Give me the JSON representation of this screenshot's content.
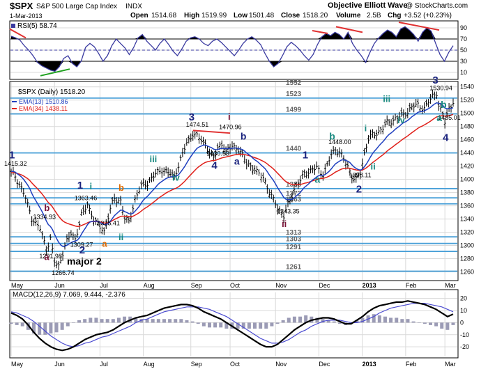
{
  "header": {
    "symbol": "$SPX",
    "name": "S&P 500 Large Cap Index",
    "exchange": "INDX",
    "brand": "Objective Elliott Wave",
    "copyright": "@ StockCharts.com",
    "date": "1-Mar-2013",
    "open_label": "Open",
    "open": "1514.68",
    "high_label": "High",
    "high": "1519.99",
    "low_label": "Low",
    "low": "1501.48",
    "close_label": "Close",
    "close": "1518.20",
    "volume_label": "Volume",
    "volume": "2.5B",
    "chg_label": "Chg",
    "chg": "+3.52 (+0.23%)"
  },
  "colors": {
    "price": "#000000",
    "ema13": "#1f3fbf",
    "ema34": "#e0201a",
    "support_lines": "#4aa0d8",
    "rsi_line": "#3a3aa0",
    "wave_navy": "#1a237e",
    "wave_teal": "#1a8a80",
    "wave_orange": "#e06a00",
    "wave_maroon": "#7a1438",
    "divergence_red": "#e03030",
    "divergence_green": "#1ea01e"
  },
  "chart_data": [
    {
      "type": "line",
      "panel": "rsi",
      "legend": "RSI(5) 58.74",
      "ylim": [
        0,
        100
      ],
      "ticks": [
        "10",
        "30",
        "50",
        "70",
        "90"
      ],
      "overbought": 70,
      "oversold": 30,
      "values": [
        75,
        72,
        68,
        58,
        50,
        40,
        28,
        22,
        18,
        14,
        12,
        20,
        35,
        40,
        26,
        20,
        30,
        55,
        62,
        56,
        44,
        30,
        40,
        58,
        70,
        62,
        54,
        42,
        55,
        72,
        78,
        66,
        58,
        50,
        62,
        70,
        60,
        48,
        40,
        52,
        66,
        72,
        74,
        70,
        62,
        58,
        66,
        70,
        64,
        56,
        48,
        40,
        50,
        62,
        70,
        74,
        68,
        60,
        44,
        30,
        20,
        26,
        40,
        56,
        64,
        58,
        50,
        40,
        32,
        42,
        60,
        74,
        80,
        76,
        82,
        78,
        70,
        82,
        62,
        50,
        40,
        28,
        46,
        62,
        72,
        80,
        86,
        82,
        74,
        88,
        92,
        86,
        78,
        66,
        82,
        90,
        84,
        62,
        42,
        30,
        46,
        58
      ]
    },
    {
      "type": "line",
      "panel": "price",
      "legend": [
        "$SPX (Daily) 1518.20",
        "EMA(13) 1510.86",
        "EMA(34) 1438.11"
      ],
      "ylim": [
        1250,
        1545
      ],
      "ticks": [
        "1260",
        "1280",
        "1300",
        "1320",
        "1340",
        "1360",
        "1380",
        "1400",
        "1420",
        "1440",
        "1460",
        "1480",
        "1500",
        "1520",
        "1540"
      ],
      "months": [
        "May",
        "Jun",
        "Jul",
        "Aug",
        "Sep",
        "Oct",
        "Nov",
        "Dec",
        "2013",
        "Feb",
        "Mar"
      ],
      "month_positions": [
        0,
        21,
        43,
        64,
        87,
        106,
        128,
        149,
        170,
        191,
        210
      ],
      "n_points": 214,
      "anchors": [
        [
          0,
          1410
        ],
        [
          2,
          1405
        ],
        [
          6,
          1380
        ],
        [
          10,
          1342
        ],
        [
          14,
          1325
        ],
        [
          17,
          1295
        ],
        [
          19,
          1310
        ],
        [
          21,
          1275
        ],
        [
          23,
          1268
        ],
        [
          26,
          1300
        ],
        [
          29,
          1318
        ],
        [
          31,
          1310
        ],
        [
          34,
          1345
        ],
        [
          37,
          1362
        ],
        [
          40,
          1340
        ],
        [
          42,
          1330
        ],
        [
          45,
          1322
        ],
        [
          48,
          1355
        ],
        [
          50,
          1370
        ],
        [
          53,
          1368
        ],
        [
          55,
          1340
        ],
        [
          57,
          1335
        ],
        [
          60,
          1370
        ],
        [
          63,
          1390
        ],
        [
          66,
          1395
        ],
        [
          70,
          1408
        ],
        [
          73,
          1415
        ],
        [
          76,
          1410
        ],
        [
          79,
          1405
        ],
        [
          82,
          1430
        ],
        [
          85,
          1455
        ],
        [
          88,
          1470
        ],
        [
          91,
          1462
        ],
        [
          94,
          1455
        ],
        [
          96,
          1440
        ],
        [
          98,
          1432
        ],
        [
          100,
          1448
        ],
        [
          102,
          1455
        ],
        [
          104,
          1440
        ],
        [
          107,
          1452
        ],
        [
          110,
          1445
        ],
        [
          113,
          1430
        ],
        [
          116,
          1420
        ],
        [
          119,
          1410
        ],
        [
          122,
          1405
        ],
        [
          125,
          1378
        ],
        [
          128,
          1365
        ],
        [
          130,
          1352
        ],
        [
          132,
          1343
        ],
        [
          134,
          1362
        ],
        [
          137,
          1385
        ],
        [
          140,
          1398
        ],
        [
          142,
          1410
        ],
        [
          145,
          1412
        ],
        [
          148,
          1418
        ],
        [
          151,
          1408
        ],
        [
          153,
          1420
        ],
        [
          155,
          1438
        ],
        [
          157,
          1446
        ],
        [
          159,
          1440
        ],
        [
          161,
          1430
        ],
        [
          163,
          1420
        ],
        [
          165,
          1405
        ],
        [
          167,
          1398
        ],
        [
          169,
          1410
        ],
        [
          171,
          1440
        ],
        [
          173,
          1462
        ],
        [
          176,
          1468
        ],
        [
          179,
          1475
        ],
        [
          182,
          1485
        ],
        [
          185,
          1490
        ],
        [
          188,
          1495
        ],
        [
          191,
          1500
        ],
        [
          194,
          1510
        ],
        [
          197,
          1512
        ],
        [
          200,
          1508
        ],
        [
          202,
          1517
        ],
        [
          204,
          1525
        ],
        [
          206,
          1532
        ],
        [
          207,
          1512
        ],
        [
          209,
          1498
        ],
        [
          210,
          1486
        ],
        [
          212,
          1508
        ],
        [
          214,
          1518
        ]
      ],
      "levels": [
        {
          "value": 1552,
          "label": "1552"
        },
        {
          "value": 1523,
          "label": "1523"
        },
        {
          "value": 1499,
          "label": "1499"
        },
        {
          "value": 1440,
          "label": "1440"
        },
        {
          "value": 1386,
          "label": "1386"
        },
        {
          "value": 1372,
          "label": "1372"
        },
        {
          "value": 1363,
          "label": "1363"
        },
        {
          "value": 1313,
          "label": "1313"
        },
        {
          "value": 1303,
          "label": "1303"
        },
        {
          "value": 1291,
          "label": "1291"
        },
        {
          "value": 1261,
          "label": "1261"
        }
      ],
      "price_labels": [
        {
          "x": 0,
          "y": 1415.32,
          "text": "1415.32"
        },
        {
          "x": 34,
          "y": 1363.46,
          "text": "1363.46"
        },
        {
          "x": 14,
          "y": 1334.93,
          "text": "1334.93"
        },
        {
          "x": 45,
          "y": 1325.41,
          "text": "1325.41"
        },
        {
          "x": 32,
          "y": 1309.27,
          "text": "1309.27"
        },
        {
          "x": 17,
          "y": 1291.98,
          "text": "1291.98"
        },
        {
          "x": 23,
          "y": 1266.74,
          "text": "1266.74"
        },
        {
          "x": 88,
          "y": 1474.51,
          "text": "1474.51"
        },
        {
          "x": 104,
          "y": 1470.96,
          "text": "1470.96"
        },
        {
          "x": 98,
          "y": 1430.53,
          "text": "1430.53"
        },
        {
          "x": 157,
          "y": 1448.0,
          "text": "1448.00"
        },
        {
          "x": 167,
          "y": 1398.11,
          "text": "1398.11"
        },
        {
          "x": 132,
          "y": 1343.35,
          "text": "1343.35"
        },
        {
          "x": 206,
          "y": 1530.94,
          "text": "1530.94"
        },
        {
          "x": 210,
          "y": 1485.01,
          "text": "1485.01"
        }
      ],
      "wave_labels": [
        {
          "x": 0,
          "y": 1432,
          "text": "1",
          "color": "navy",
          "size": 15
        },
        {
          "x": 33,
          "y": 1386,
          "text": "1",
          "color": "navy",
          "size": 15
        },
        {
          "x": 17,
          "y": 1278,
          "text": "a",
          "color": "maroon",
          "size": 13
        },
        {
          "x": 17,
          "y": 1352,
          "text": "b",
          "color": "maroon",
          "size": 13
        },
        {
          "x": 39,
          "y": 1385,
          "text": "i",
          "color": "teal",
          "size": 13
        },
        {
          "x": 34,
          "y": 1288,
          "text": "2",
          "color": "navy",
          "size": 15
        },
        {
          "x": 45,
          "y": 1298,
          "text": "a",
          "color": "orange",
          "size": 13
        },
        {
          "x": 53,
          "y": 1383,
          "text": "b",
          "color": "orange",
          "size": 13
        },
        {
          "x": 53,
          "y": 1308,
          "text": "ii",
          "color": "teal",
          "size": 13
        },
        {
          "x": 68,
          "y": 1426,
          "text": "iii",
          "color": "teal",
          "size": 13
        },
        {
          "x": 79,
          "y": 1398,
          "text": "iv",
          "color": "teal",
          "size": 13
        },
        {
          "x": 87,
          "y": 1489,
          "text": "3",
          "color": "navy",
          "size": 15
        },
        {
          "x": 106,
          "y": 1490,
          "text": "i",
          "color": "maroon",
          "size": 13
        },
        {
          "x": 98,
          "y": 1416,
          "text": "4",
          "color": "navy",
          "size": 15
        },
        {
          "x": 109,
          "y": 1422,
          "text": "a",
          "color": "navy",
          "size": 14
        },
        {
          "x": 112,
          "y": 1460,
          "text": "b",
          "color": "navy",
          "size": 14
        },
        {
          "x": 132,
          "y": 1328,
          "text": "ii",
          "color": "maroon",
          "size": 13
        },
        {
          "x": 142,
          "y": 1432,
          "text": "1",
          "color": "navy",
          "size": 15
        },
        {
          "x": 148,
          "y": 1395,
          "text": "a",
          "color": "teal",
          "size": 14
        },
        {
          "x": 155,
          "y": 1460,
          "text": "b",
          "color": "teal",
          "size": 14
        },
        {
          "x": 168,
          "y": 1380,
          "text": "2",
          "color": "navy",
          "size": 15
        },
        {
          "x": 172,
          "y": 1473,
          "text": "i",
          "color": "teal",
          "size": 13
        },
        {
          "x": 175,
          "y": 1415,
          "text": "ii",
          "color": "teal",
          "size": 13
        },
        {
          "x": 181,
          "y": 1517,
          "text": "iii",
          "color": "teal",
          "size": 13
        },
        {
          "x": 188,
          "y": 1485,
          "text": "iv",
          "color": "teal",
          "size": 13
        },
        {
          "x": 205,
          "y": 1545,
          "text": "3",
          "color": "navy",
          "size": 15
        },
        {
          "x": 209,
          "y": 1508,
          "text": "b",
          "color": "teal",
          "size": 14
        },
        {
          "x": 207,
          "y": 1488,
          "text": "a",
          "color": "teal",
          "size": 14
        },
        {
          "x": 210,
          "y": 1458,
          "text": "4",
          "color": "navy",
          "size": 15
        }
      ],
      "annotation": {
        "x": 27,
        "y": 1271,
        "text": "major 2"
      }
    },
    {
      "type": "line",
      "panel": "macd",
      "legend": "MACD(12,26,9) 7.069, 9.444, -2.376",
      "ylim": [
        -28,
        25
      ],
      "ticks": [
        "-20",
        "-10",
        "0",
        "10",
        "20"
      ],
      "macd": [
        8,
        6,
        3,
        -2,
        -8,
        -13,
        -17,
        -20,
        -22,
        -23,
        -22,
        -20,
        -17,
        -14,
        -12,
        -10,
        -9,
        -8,
        -6,
        -3,
        0,
        2,
        4,
        5,
        6,
        8,
        10,
        12,
        13,
        14,
        15,
        15,
        14,
        12,
        9,
        7,
        5,
        3,
        0,
        -3,
        -6,
        -9,
        -12,
        -15,
        -18,
        -20,
        -20,
        -18,
        -14,
        -10,
        -6,
        -3,
        0,
        2,
        3,
        4,
        4,
        3,
        1,
        -1,
        -1,
        2,
        5,
        9,
        12,
        14,
        15,
        16,
        17,
        17,
        18,
        17,
        16,
        15,
        13,
        11,
        8,
        5,
        7
      ],
      "signal": [
        9,
        8,
        6,
        4,
        1,
        -3,
        -7,
        -11,
        -14,
        -17,
        -19,
        -20,
        -19,
        -17,
        -16,
        -14,
        -12,
        -11,
        -9,
        -7,
        -5,
        -3,
        0,
        2,
        3,
        5,
        7,
        9,
        10,
        11,
        12,
        13,
        13,
        13,
        12,
        11,
        9,
        7,
        5,
        2,
        -1,
        -4,
        -7,
        -10,
        -13,
        -15,
        -17,
        -17,
        -16,
        -14,
        -11,
        -8,
        -6,
        -3,
        -1,
        1,
        2,
        2,
        2,
        1,
        0,
        0,
        1,
        3,
        5,
        8,
        10,
        12,
        13,
        14,
        15,
        16,
        16,
        16,
        15,
        14,
        13,
        11,
        9
      ]
    }
  ]
}
